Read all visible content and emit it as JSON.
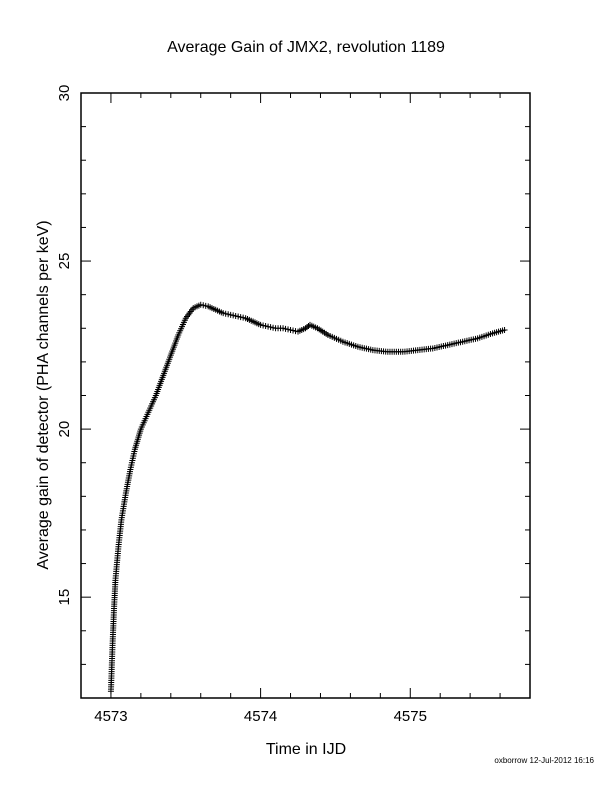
{
  "chart_data": {
    "type": "scatter",
    "title": "Average Gain of JMX2, revolution 1189",
    "xlabel": "Time in IJD",
    "ylabel": "Average gain of detector (PHA channels per keV)",
    "xlim": [
      4572.8,
      4575.8
    ],
    "ylim": [
      12,
      30
    ],
    "x_ticks": [
      "4573",
      "4574",
      "4575"
    ],
    "y_ticks": [
      "15",
      "20",
      "25",
      "30"
    ],
    "marker": "plus",
    "grid": false,
    "series": [
      {
        "x": [
          4573.0,
          4573.01,
          4573.02,
          4573.03,
          4573.05,
          4573.07,
          4573.1,
          4573.13,
          4573.16,
          4573.2,
          4573.25,
          4573.3,
          4573.35,
          4573.4,
          4573.45,
          4573.5,
          4573.55,
          4573.6,
          4573.65,
          4573.7,
          4573.75,
          4573.8,
          4573.85,
          4573.9,
          4573.95,
          4574.0,
          4574.05,
          4574.1,
          4574.15,
          4574.2,
          4574.25,
          4574.3,
          4574.33,
          4574.38,
          4574.45,
          4574.55,
          4574.65,
          4574.75,
          4574.85,
          4574.95,
          4575.05,
          4575.15,
          4575.25,
          4575.35,
          4575.45,
          4575.55,
          4575.63
        ],
        "y": [
          12.2,
          13.5,
          14.6,
          15.5,
          16.5,
          17.3,
          18.1,
          18.8,
          19.4,
          20.0,
          20.5,
          21.0,
          21.6,
          22.2,
          22.8,
          23.3,
          23.6,
          23.7,
          23.65,
          23.55,
          23.45,
          23.4,
          23.35,
          23.3,
          23.2,
          23.1,
          23.05,
          23.0,
          23.0,
          22.95,
          22.9,
          23.0,
          23.1,
          23.0,
          22.8,
          22.6,
          22.45,
          22.35,
          22.3,
          22.3,
          22.35,
          22.4,
          22.5,
          22.6,
          22.7,
          22.85,
          22.95
        ]
      }
    ]
  },
  "credit": "oxborrow 12-Jul-2012 16:16"
}
